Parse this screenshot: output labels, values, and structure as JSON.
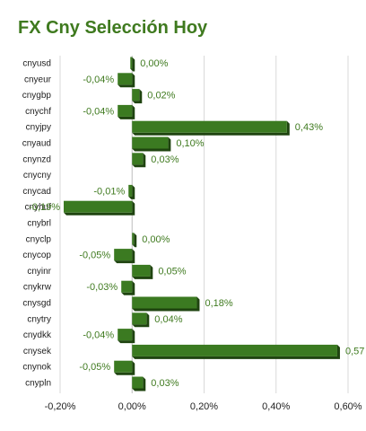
{
  "chart_data": {
    "type": "bar",
    "orientation": "horizontal",
    "title": "FX Cny Selección Hoy",
    "categories": [
      "cnyusd",
      "cnyeur",
      "cnygbp",
      "cnychf",
      "cnyjpy",
      "cnyaud",
      "cnynzd",
      "cnycny",
      "cnycad",
      "cnyhuf",
      "cnybrl",
      "cnyclp",
      "cnycop",
      "cnyinr",
      "cnykrw",
      "cnysgd",
      "cnytry",
      "cnydkk",
      "cnysek",
      "cnynok",
      "cnypln"
    ],
    "values": [
      0.0,
      -0.04,
      0.02,
      -0.04,
      0.43,
      0.1,
      0.03,
      null,
      -0.01,
      -0.19,
      null,
      0.0,
      -0.05,
      0.05,
      -0.03,
      0.18,
      0.04,
      -0.04,
      0.57,
      -0.05,
      0.03
    ],
    "data_labels": [
      "0,00%",
      "-0,04%",
      "0,02%",
      "-0,04%",
      "0,43%",
      "0,10%",
      "0,03%",
      "",
      "-0,01%",
      "-0,19%",
      "",
      "0,00%",
      "-0,05%",
      "0,05%",
      "-0,03%",
      "0,18%",
      "0,04%",
      "-0,04%",
      "0,57",
      "-0,05%",
      "0,03%"
    ],
    "xlim": [
      -0.2,
      0.6
    ],
    "xticks": [
      -0.2,
      0.0,
      0.2,
      0.4,
      0.6
    ],
    "xtick_labels": [
      "-0,20%",
      "0,00%",
      "0,20%",
      "0,40%",
      "0,60%"
    ],
    "grid": "vertical",
    "colors": {
      "bar": "#3b7a21",
      "bar_side": "#1f4410",
      "label": "#3f7a1f",
      "title": "#3f7a1f",
      "grid": "#d9d9d9"
    }
  }
}
